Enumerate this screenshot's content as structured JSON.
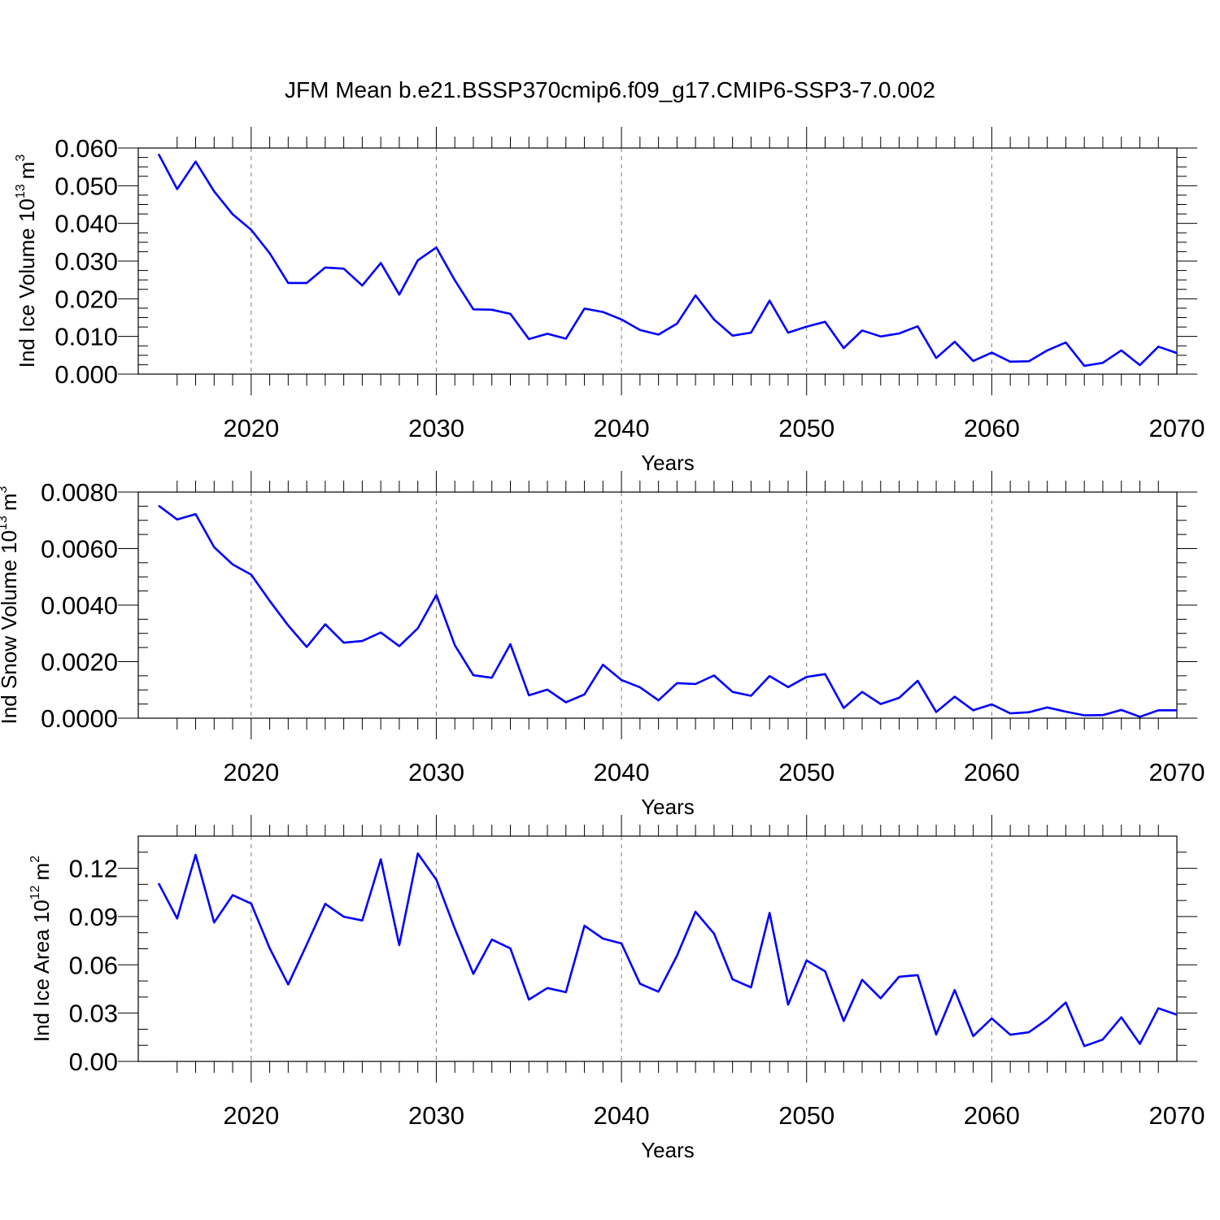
{
  "figure": {
    "title": "JFM Mean b.e21.BSSP370cmip6.f09_g17.CMIP6-SSP3-7.0.002"
  },
  "chart_data": [
    {
      "type": "line",
      "ylabel": "Ind Ice Volume 10",
      "ylabel_exponent": "13",
      "ylabel_unit": "m",
      "ylabel_unit_exponent": "3",
      "xlabel": "Years",
      "xlim": [
        2015,
        2070
      ],
      "ylim": [
        0,
        0.06
      ],
      "xticks": [
        2020,
        2030,
        2040,
        2050,
        2060,
        2070
      ],
      "yticks": [
        0,
        0.01,
        0.02,
        0.03,
        0.04,
        0.05,
        0.06
      ],
      "ytick_labels": [
        "0.000",
        "0.010",
        "0.020",
        "0.030",
        "0.040",
        "0.050",
        "0.060"
      ],
      "grid": "vertical dashed at major x ticks",
      "color": "#0000ff",
      "x": [
        2015,
        2016,
        2017,
        2018,
        2019,
        2020,
        2021,
        2022,
        2023,
        2024,
        2025,
        2026,
        2027,
        2028,
        2029,
        2030,
        2031,
        2032,
        2033,
        2034,
        2035,
        2036,
        2037,
        2038,
        2039,
        2040,
        2041,
        2042,
        2043,
        2044,
        2045,
        2046,
        2047,
        2048,
        2049,
        2050,
        2051,
        2052,
        2053,
        2054,
        2055,
        2056,
        2057,
        2058,
        2059,
        2060,
        2061,
        2062,
        2063,
        2064,
        2065,
        2066,
        2067,
        2068,
        2069,
        2070
      ],
      "values": [
        0.0584,
        0.0491,
        0.0564,
        0.0485,
        0.0424,
        0.0383,
        0.0321,
        0.0242,
        0.0242,
        0.0283,
        0.028,
        0.0235,
        0.0295,
        0.0211,
        0.0302,
        0.0336,
        0.0249,
        0.0172,
        0.0171,
        0.016,
        0.0093,
        0.0107,
        0.0094,
        0.0174,
        0.0165,
        0.0145,
        0.0117,
        0.0105,
        0.0134,
        0.0209,
        0.0145,
        0.0102,
        0.011,
        0.0195,
        0.011,
        0.0126,
        0.0139,
        0.0069,
        0.0116,
        0.01,
        0.0108,
        0.0127,
        0.0043,
        0.0086,
        0.0035,
        0.0057,
        0.0033,
        0.0034,
        0.0063,
        0.0084,
        0.0022,
        0.003,
        0.0063,
        0.0024,
        0.0073,
        0.0056
      ]
    },
    {
      "type": "line",
      "ylabel": "Ind Snow Volume 10",
      "ylabel_exponent": "13",
      "ylabel_unit": "m",
      "ylabel_unit_exponent": "3",
      "xlabel": "Years",
      "xlim": [
        2015,
        2070
      ],
      "ylim": [
        0,
        0.008
      ],
      "xticks": [
        2020,
        2030,
        2040,
        2050,
        2060,
        2070
      ],
      "yticks": [
        0,
        0.002,
        0.004,
        0.006,
        0.008
      ],
      "ytick_labels": [
        "0.0000",
        "0.0020",
        "0.0040",
        "0.0060",
        "0.0080"
      ],
      "grid": "vertical dashed at major x ticks",
      "color": "#0000ff",
      "x": [
        2015,
        2016,
        2017,
        2018,
        2019,
        2020,
        2021,
        2022,
        2023,
        2024,
        2025,
        2026,
        2027,
        2028,
        2029,
        2030,
        2031,
        2032,
        2033,
        2034,
        2035,
        2036,
        2037,
        2038,
        2039,
        2040,
        2041,
        2042,
        2043,
        2044,
        2045,
        2046,
        2047,
        2048,
        2049,
        2050,
        2051,
        2052,
        2053,
        2054,
        2055,
        2056,
        2057,
        2058,
        2059,
        2060,
        2061,
        2062,
        2063,
        2064,
        2065,
        2066,
        2067,
        2068,
        2069,
        2070
      ],
      "values": [
        0.00752,
        0.00703,
        0.00722,
        0.00605,
        0.00544,
        0.00508,
        0.00415,
        0.00328,
        0.00252,
        0.00332,
        0.00267,
        0.00273,
        0.00303,
        0.00255,
        0.00318,
        0.00436,
        0.00258,
        0.00152,
        0.00143,
        0.00262,
        0.00081,
        0.00101,
        0.00056,
        0.00084,
        0.00189,
        0.00135,
        0.00109,
        0.00063,
        0.00124,
        0.00121,
        0.00151,
        0.00093,
        0.00079,
        0.00149,
        0.0011,
        0.00146,
        0.00156,
        0.00036,
        0.00093,
        0.0005,
        0.00072,
        0.00132,
        0.00022,
        0.00076,
        0.00028,
        0.00049,
        0.00017,
        0.00021,
        0.00038,
        0.00023,
        0.0001,
        0.00011,
        0.00029,
        5e-05,
        0.00028,
        0.00028
      ]
    },
    {
      "type": "line",
      "ylabel": "Ind Ice Area 10",
      "ylabel_exponent": "12",
      "ylabel_unit": "m",
      "ylabel_unit_exponent": "2",
      "xlabel": "Years",
      "xlim": [
        2015,
        2070
      ],
      "ylim": [
        0,
        0.14
      ],
      "xticks": [
        2020,
        2030,
        2040,
        2050,
        2060,
        2070
      ],
      "yticks": [
        0,
        0.03,
        0.06,
        0.09,
        0.12
      ],
      "ytick_labels": [
        "0.00",
        "0.03",
        "0.06",
        "0.09",
        "0.12"
      ],
      "grid": "vertical dashed at major x ticks",
      "color": "#0000ff",
      "x": [
        2015,
        2016,
        2017,
        2018,
        2019,
        2020,
        2021,
        2022,
        2023,
        2024,
        2025,
        2026,
        2027,
        2028,
        2029,
        2030,
        2031,
        2032,
        2033,
        2034,
        2035,
        2036,
        2037,
        2038,
        2039,
        2040,
        2041,
        2042,
        2043,
        2044,
        2045,
        2046,
        2047,
        2048,
        2049,
        2050,
        2051,
        2052,
        2053,
        2054,
        2055,
        2056,
        2057,
        2058,
        2059,
        2060,
        2061,
        2062,
        2063,
        2064,
        2065,
        2066,
        2067,
        2068,
        2069,
        2070
      ],
      "values": [
        0.1107,
        0.0888,
        0.1284,
        0.0863,
        0.1033,
        0.0981,
        0.0703,
        0.0478,
        0.0726,
        0.0979,
        0.0899,
        0.0876,
        0.1256,
        0.0722,
        0.1292,
        0.1129,
        0.0825,
        0.0544,
        0.0757,
        0.0702,
        0.0384,
        0.0456,
        0.043,
        0.0843,
        0.0763,
        0.0733,
        0.0482,
        0.0433,
        0.0657,
        0.093,
        0.0794,
        0.051,
        0.046,
        0.0923,
        0.0353,
        0.0627,
        0.056,
        0.0251,
        0.0507,
        0.0392,
        0.0526,
        0.0536,
        0.0167,
        0.0443,
        0.0157,
        0.0267,
        0.0166,
        0.0181,
        0.0262,
        0.0366,
        0.0095,
        0.0136,
        0.0274,
        0.0109,
        0.033,
        0.029
      ]
    }
  ]
}
